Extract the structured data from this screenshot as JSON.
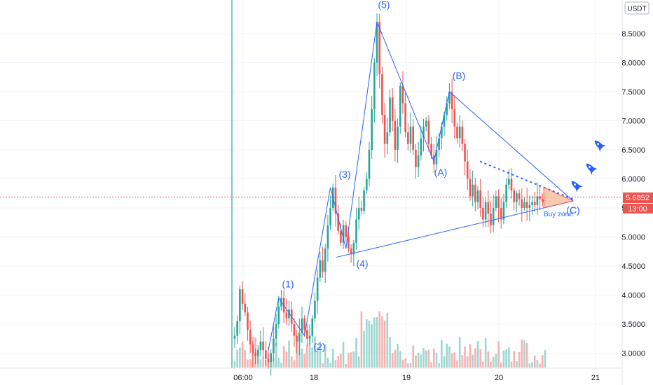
{
  "currency": "USDT",
  "price_tag": "5.6852",
  "time_tag": "13:00",
  "buy_zone_label": "Buy zone",
  "colors": {
    "up": "#26a69a",
    "down": "#ef5350",
    "line": "#2962ff",
    "price_line": "#ef5350",
    "session": "#26a69a",
    "zone": "#f7c2a3"
  },
  "icons": [
    "rocket-icon",
    "rocket-icon",
    "rocket-icon"
  ],
  "chart_data": {
    "type": "candlestick",
    "y_ticks": [
      "8.5000",
      "8.0000",
      "7.5000",
      "7.0000",
      "6.5000",
      "6.0000",
      "5.5000",
      "5.0000",
      "4.5000",
      "4.0000",
      "3.5000",
      "3.0000"
    ],
    "x_ticks": [
      "06:00",
      "18",
      "19",
      "20",
      "21"
    ],
    "ylim": [
      2.76,
      9.1
    ],
    "last_price": 5.6852,
    "wave_labels": [
      {
        "label": "(1)",
        "price": 3.95
      },
      {
        "label": "(2)",
        "price": 3.2
      },
      {
        "label": "(3)",
        "price": 5.85
      },
      {
        "label": "(4)",
        "price": 4.65
      },
      {
        "label": "(5)",
        "price": 8.7
      },
      {
        "label": "(A)",
        "price": 6.25
      },
      {
        "label": "(B)",
        "price": 7.5
      },
      {
        "label": "(C)",
        "price": 5.55
      }
    ],
    "closes": [
      3.3,
      3.55,
      4.1,
      3.85,
      3.7,
      3.4,
      3.15,
      3.0,
      2.95,
      3.05,
      3.2,
      3.05,
      2.9,
      2.85,
      3.0,
      3.25,
      3.5,
      3.8,
      3.95,
      3.7,
      3.6,
      3.75,
      3.5,
      3.3,
      3.2,
      3.35,
      3.6,
      3.4,
      3.25,
      3.3,
      3.6,
      3.9,
      4.3,
      4.6,
      4.4,
      4.8,
      5.2,
      5.5,
      5.85,
      5.4,
      5.1,
      4.9,
      5.2,
      5.0,
      4.8,
      4.7,
      4.9,
      5.3,
      5.5,
      5.45,
      5.8,
      6.0,
      6.5,
      7.2,
      8.0,
      8.7,
      7.8,
      7.1,
      6.6,
      6.8,
      7.4,
      7.0,
      6.5,
      6.9,
      7.6,
      7.3,
      6.8,
      6.6,
      6.9,
      6.5,
      6.2,
      6.4,
      6.7,
      6.9,
      7.0,
      6.6,
      6.4,
      6.25,
      6.5,
      6.7,
      6.9,
      7.1,
      7.3,
      7.5,
      7.2,
      6.9,
      6.7,
      6.9,
      6.6,
      6.3,
      6.0,
      5.7,
      5.9,
      5.6,
      5.8,
      5.5,
      5.3,
      5.6,
      5.4,
      5.2,
      5.5,
      5.7,
      5.5,
      5.3,
      5.6,
      5.9,
      6.0,
      5.8,
      5.6,
      5.75,
      5.65,
      5.5,
      5.6,
      5.5,
      5.55,
      5.6,
      5.55,
      5.7,
      5.65,
      5.6,
      5.69
    ]
  }
}
